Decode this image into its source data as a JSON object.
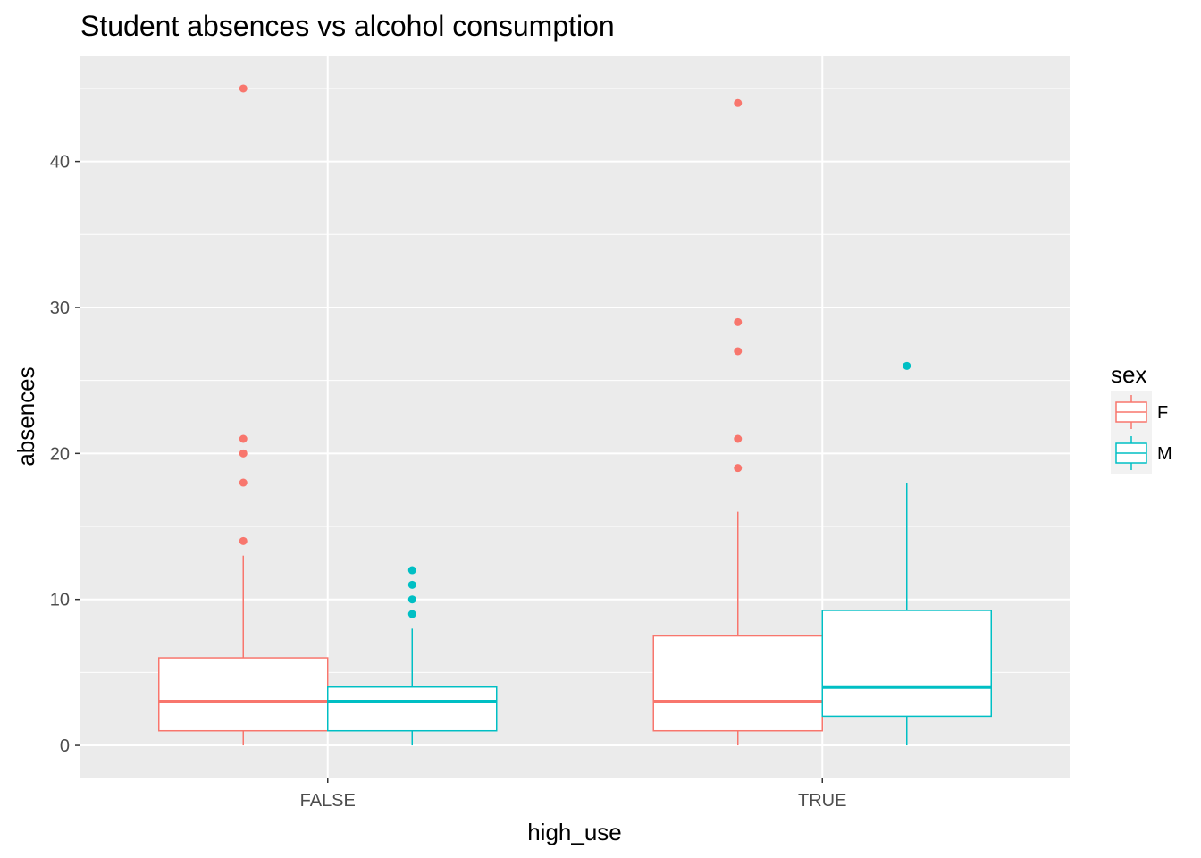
{
  "chart_data": {
    "type": "boxplot",
    "title": "Student absences vs alcohol consumption",
    "xlabel": "high_use",
    "ylabel": "absences",
    "categories": [
      "FALSE",
      "TRUE"
    ],
    "ylim": [
      -2.2,
      47.2
    ],
    "yticks": [
      0,
      10,
      20,
      30,
      40
    ],
    "grid": true,
    "legend": {
      "title": "sex",
      "placement": "right",
      "entries": [
        "F",
        "M"
      ]
    },
    "series": [
      {
        "name": "F",
        "color": "#F8766D",
        "boxes": [
          {
            "category": "FALSE",
            "lower_whisker": 0,
            "q1": 1,
            "median": 3,
            "q3": 6,
            "upper_whisker": 13,
            "outliers": [
              14,
              18,
              20,
              21,
              45
            ]
          },
          {
            "category": "TRUE",
            "lower_whisker": 0,
            "q1": 1,
            "median": 3,
            "q3": 7.5,
            "upper_whisker": 16,
            "outliers": [
              19,
              21,
              27,
              29,
              44
            ]
          }
        ]
      },
      {
        "name": "M",
        "color": "#00BFC4",
        "boxes": [
          {
            "category": "FALSE",
            "lower_whisker": 0,
            "q1": 1,
            "median": 3,
            "q3": 4,
            "upper_whisker": 8,
            "outliers": [
              9,
              10,
              11,
              12
            ]
          },
          {
            "category": "TRUE",
            "lower_whisker": 0,
            "q1": 2,
            "median": 4,
            "q3": 9.25,
            "upper_whisker": 18,
            "outliers": [
              26
            ]
          }
        ]
      }
    ]
  }
}
